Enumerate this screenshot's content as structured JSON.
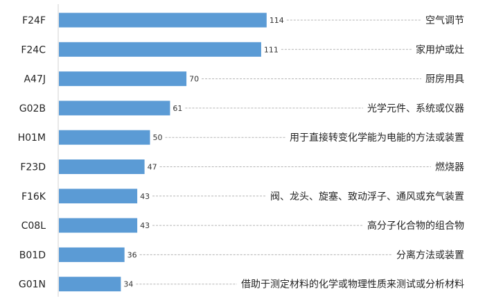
{
  "chart_data": {
    "type": "bar",
    "orientation": "horizontal",
    "title": "",
    "xlabel": "",
    "ylabel": "",
    "grid": false,
    "bar_color": "#5b9bd5",
    "leader_color": "#b3b3b3",
    "xlim": [
      0,
      130
    ],
    "categories": [
      "F24F",
      "F24C",
      "A47J",
      "G02B",
      "H01M",
      "F23D",
      "F16K",
      "C08L",
      "B01D",
      "G01N"
    ],
    "values": [
      114,
      111,
      70,
      61,
      50,
      47,
      43,
      43,
      36,
      34
    ],
    "descriptions": [
      "空气调节",
      "家用炉或灶",
      "厨房用具",
      "光学元件、系统或仪器",
      "用于直接转变化学能为电能的方法或装置",
      "燃烧器",
      "阀、龙头、旋塞、致动浮子、通风或充气装置",
      "高分子化合物的组合物",
      "分离方法或装置",
      "借助于测定材料的化学或物理性质来测试或分析材料"
    ]
  }
}
